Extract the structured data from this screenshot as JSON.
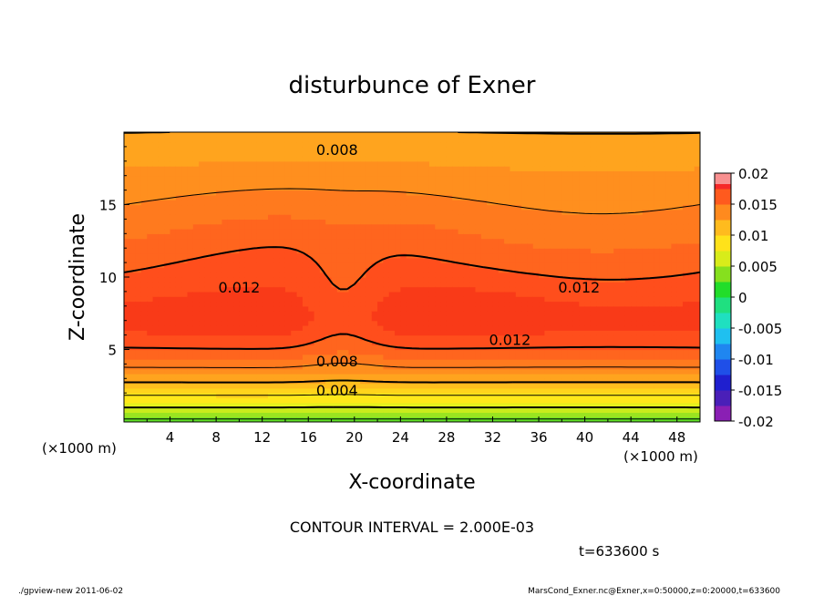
{
  "chart_data": {
    "type": "heatmap",
    "title": "disturbunce of Exner",
    "xlabel": "X-coordinate",
    "ylabel": "Z-coordinate",
    "x_unit_label": "(×1000 m)",
    "x_unit_label_right": "(×1000 m)",
    "xlim": [
      0,
      50
    ],
    "ylim": [
      0,
      20
    ],
    "x_ticks": [
      4,
      8,
      12,
      16,
      20,
      24,
      28,
      32,
      36,
      40,
      44,
      48
    ],
    "y_ticks": [
      5,
      10,
      15
    ],
    "colorbar": {
      "min": -0.02,
      "max": 0.02,
      "tick_values": [
        0.02,
        0.015,
        0.01,
        0.005,
        0,
        -0.005,
        -0.01,
        -0.015,
        -0.02
      ],
      "tick_labels": [
        "0.02",
        "0.015",
        "0.01",
        "0.005",
        "0",
        "-0.005",
        "-0.01",
        "-0.015",
        "-0.02"
      ]
    },
    "contour_interval": 0.002,
    "contour_labels": [
      {
        "text": "0.008",
        "x": 18.5,
        "y": 18.8
      },
      {
        "text": "0.012",
        "x": 10,
        "y": 9.3
      },
      {
        "text": "0.012",
        "x": 39.5,
        "y": 9.3
      },
      {
        "text": "0.012",
        "x": 33.5,
        "y": 5.7
      },
      {
        "text": "0.008",
        "x": 18.5,
        "y": 4.2
      },
      {
        "text": "0.004",
        "x": 18.5,
        "y": 2.2
      }
    ],
    "field_description": "Exner disturbance field: ~0.002 at bottom increasing to max ~0.014 near z=7-8 km, decreasing to ~0.008 at top; dip near x=19"
  },
  "labels": {
    "contour_interval_text": "CONTOUR INTERVAL = 2.000E-03",
    "time_text": "t=633600 s",
    "footer_left": "./gpview-new  2011-06-02",
    "footer_right": "MarsCond_Exner.nc@Exner,x=0:50000,z=0:20000,t=633600"
  }
}
